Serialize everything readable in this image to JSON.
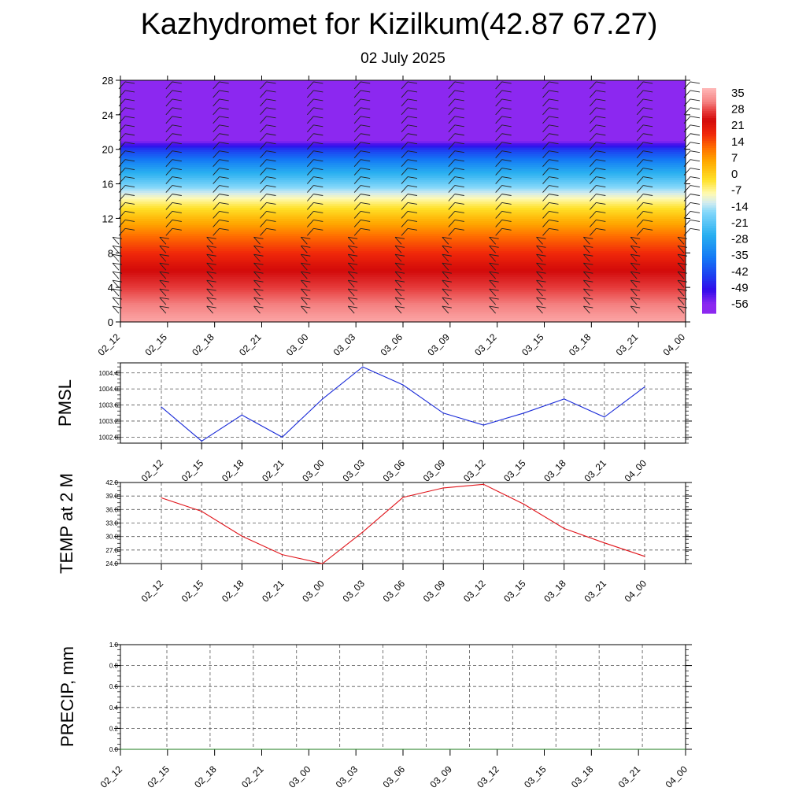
{
  "title": "Kazhydromet for Kizilkum(42.87 67.27)",
  "subtitle": "02 July 2025",
  "colors": {
    "pmsl_line": "#1a2bd8",
    "temp_line": "#e0141a",
    "precip_line": "#1a7a1a"
  },
  "chart_data": [
    {
      "type": "heatmap",
      "name": "temperature-cross-section",
      "time_labels": [
        "02_12",
        "02_15",
        "02_18",
        "02_21",
        "03_00",
        "03_03",
        "03_06",
        "03_09",
        "03_12",
        "03_15",
        "03_18",
        "03_21",
        "04_00"
      ],
      "ylim": [
        0,
        28
      ],
      "yticks": [
        0,
        4,
        8,
        12,
        16,
        20,
        24,
        28
      ],
      "colorbar_labels": [
        "35",
        "28",
        "21",
        "14",
        "7",
        "0",
        "-7",
        "-14",
        "-21",
        "-28",
        "-35",
        "-42",
        "-49",
        "-56"
      ],
      "colorbar_range": [
        -60,
        38
      ],
      "height_levels": [
        0,
        2,
        4,
        6,
        8,
        10,
        12,
        14,
        16,
        18,
        20,
        21,
        22,
        24,
        28
      ],
      "temperature_profile": [
        36,
        32,
        28,
        24,
        18,
        12,
        4,
        -6,
        -18,
        -30,
        -44,
        -56,
        -60,
        -60,
        -60
      ],
      "wind_barbs": true
    },
    {
      "type": "line",
      "name": "pmsl",
      "ylabel": "PMSL",
      "x": [
        "02_12",
        "02_15",
        "02_18",
        "02_21",
        "03_00",
        "03_03",
        "03_06",
        "03_09",
        "03_12",
        "03_15",
        "03_18",
        "03_21",
        "04_00"
      ],
      "values": [
        1003.55,
        1002.7,
        1003.35,
        1002.8,
        1003.75,
        1004.55,
        1004.1,
        1003.4,
        1003.1,
        1003.4,
        1003.75,
        1003.3,
        1004.05
      ],
      "ylim": [
        1002.65,
        1004.65
      ],
      "yticks": [
        1002.8,
        1003.2,
        1003.6,
        1004.0,
        1004.4
      ],
      "ytick_labels": [
        "1002.8",
        "1003.2",
        "1003.6",
        "1004.0",
        "1004.4"
      ],
      "grid": true
    },
    {
      "type": "line",
      "name": "temp2m",
      "ylabel": "TEMP at 2 M",
      "x": [
        "02_12",
        "02_15",
        "02_18",
        "02_21",
        "03_00",
        "03_03",
        "03_06",
        "03_09",
        "03_12",
        "03_15",
        "03_18",
        "03_21",
        "04_00"
      ],
      "values": [
        38.6,
        35.6,
        30.1,
        26.0,
        24.0,
        31.0,
        38.7,
        40.8,
        41.6,
        37.2,
        31.8,
        28.6,
        25.6
      ],
      "ylim": [
        24.0,
        42.0
      ],
      "yticks": [
        24.0,
        27.0,
        30.0,
        33.0,
        36.0,
        39.0,
        42.0
      ],
      "ytick_labels": [
        "24.0",
        "27.0",
        "30.0",
        "33.0",
        "36.0",
        "39.0",
        "42.0"
      ],
      "grid": true
    },
    {
      "type": "line",
      "name": "precip",
      "ylabel": "PRECIP, mm",
      "x": [
        "02_12",
        "02_15",
        "02_18",
        "02_21",
        "03_00",
        "03_03",
        "03_06",
        "03_09",
        "03_12",
        "03_15",
        "03_18",
        "03_21",
        "04_00"
      ],
      "values": [
        0,
        0,
        0,
        0,
        0,
        0,
        0,
        0,
        0,
        0,
        0,
        0,
        0
      ],
      "ylim": [
        0.0,
        1.0
      ],
      "yticks": [
        0.0,
        0.2,
        0.4,
        0.6,
        0.8,
        1.0
      ],
      "ytick_labels": [
        "0.0",
        "0.2",
        "0.4",
        "0.6",
        "0.8",
        "1.0"
      ],
      "grid": true
    }
  ]
}
